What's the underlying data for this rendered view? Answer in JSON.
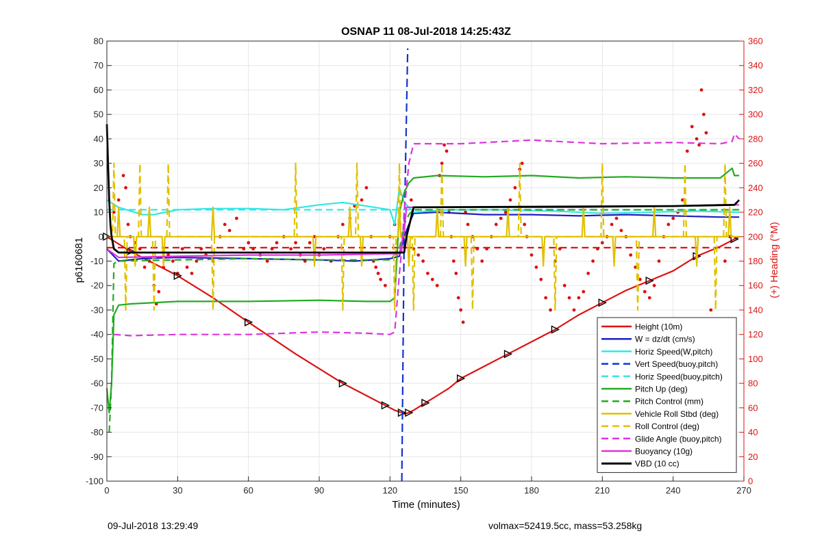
{
  "chart_data": {
    "type": "line",
    "title": "OSNAP 11 08-Jul-2018 14:25:43Z",
    "xlabel": "Time (minutes)",
    "ylabel": "p6160681",
    "y2label": "(+) Heading (°M)",
    "xlim": [
      0,
      270
    ],
    "ylim": [
      -100,
      80
    ],
    "y2lim": [
      0,
      360
    ],
    "xticks": [
      "0",
      "30",
      "60",
      "90",
      "120",
      "150",
      "180",
      "210",
      "240",
      "270"
    ],
    "yticks": [
      "80",
      "70",
      "60",
      "50",
      "40",
      "30",
      "20",
      "10",
      "0",
      "-10",
      "-20",
      "-30",
      "-40",
      "-50",
      "-60",
      "-70",
      "-80",
      "-90",
      "-100"
    ],
    "y2ticks": [
      "360",
      "340",
      "320",
      "300",
      "280",
      "260",
      "240",
      "220",
      "200",
      "180",
      "160",
      "140",
      "120",
      "100",
      "80",
      "60",
      "40",
      "20",
      "0"
    ],
    "grid": true,
    "legend_position": "bottom-right",
    "colors": {
      "red": "#dd1111",
      "blue": "#1f1fc0",
      "cyan": "#33e6e6",
      "dashblue": "#1133cc",
      "green": "#22aa22",
      "gold": "#e0c000",
      "magenta": "#dd33dd",
      "black": "#000000"
    },
    "series": [
      {
        "name": "Height (10m)",
        "style": "solid",
        "color": "red",
        "marker": "triangle",
        "x": [
          0,
          5,
          10,
          20,
          30,
          45,
          60,
          80,
          100,
          110,
          118,
          122,
          125,
          126,
          128,
          130,
          135,
          145,
          150,
          160,
          170,
          180,
          190,
          200,
          210,
          220,
          230,
          240,
          250,
          260,
          266,
          268
        ],
        "y": [
          0,
          -3,
          -6,
          -11,
          -16,
          -25,
          -35,
          -48,
          -60,
          -65,
          -69,
          -71,
          -72,
          -72.5,
          -72,
          -71,
          -68,
          -62,
          -58,
          -53,
          -48,
          -43,
          -38,
          -32,
          -27,
          -22,
          -18,
          -14,
          -8,
          -4,
          -1,
          0
        ]
      },
      {
        "name": "W = dz/dt (cm/s)",
        "style": "solid",
        "color": "blue",
        "x": [
          0,
          5,
          15,
          30,
          60,
          90,
          105,
          120,
          124,
          126,
          128,
          130,
          140,
          160,
          180,
          200,
          220,
          240,
          260,
          268
        ],
        "y": [
          -5,
          -10,
          -9,
          -8.5,
          -9,
          -9.5,
          -10,
          -9,
          -8,
          0,
          5,
          9.5,
          10,
          9,
          9,
          8.5,
          9,
          8.5,
          8,
          8
        ]
      },
      {
        "name": "Horiz Speed(W,pitch)",
        "style": "solid",
        "color": "cyan",
        "x": [
          0,
          5,
          15,
          20,
          30,
          45,
          60,
          75,
          90,
          100,
          110,
          120,
          122,
          124,
          126,
          130,
          145,
          165,
          190,
          210,
          230,
          250,
          268
        ],
        "y": [
          15,
          12,
          9,
          9,
          11,
          11.5,
          11.5,
          11,
          13,
          14,
          12.5,
          11,
          5,
          20,
          14,
          10,
          11,
          11,
          10.5,
          9.5,
          10,
          10.5,
          10
        ]
      },
      {
        "name": "Vert Speed(buoy,pitch)",
        "style": "dashed",
        "color": "dashblue",
        "x": [
          125,
          126,
          127.5
        ],
        "y": [
          -100,
          0,
          77
        ]
      },
      {
        "name": "Horiz Speed(buoy,pitch)",
        "style": "dashed",
        "color": "cyan",
        "x": [
          0,
          268
        ],
        "y": [
          11,
          11
        ]
      },
      {
        "name": "Pitch Up (deg)",
        "style": "solid",
        "color": "green",
        "x": [
          0,
          1,
          2,
          3,
          5,
          10,
          30,
          60,
          90,
          110,
          120,
          122,
          124,
          126,
          128,
          130,
          140,
          160,
          180,
          200,
          220,
          240,
          260,
          265,
          266,
          268
        ],
        "y": [
          -62,
          -72,
          -60,
          -32,
          -28,
          -27.5,
          -26.5,
          -26.5,
          -26,
          -26.5,
          -26.5,
          -25,
          10,
          18,
          22,
          24,
          25,
          24.5,
          25,
          24,
          24.5,
          24,
          24,
          28,
          25,
          25
        ]
      },
      {
        "name": "Pitch Control (mm)",
        "style": "dashed",
        "color": "green",
        "x": [
          1,
          2,
          3,
          5,
          30,
          60,
          90,
          120,
          124,
          126,
          128,
          130,
          150,
          180,
          210,
          240,
          268
        ],
        "y": [
          -80,
          -60,
          -11,
          -10,
          -9.5,
          -9,
          -9.5,
          -9.5,
          -5,
          5,
          9,
          11,
          11,
          11,
          11,
          11,
          11
        ]
      },
      {
        "name": "Vehicle Roll Stbd (deg)",
        "style": "solid",
        "color": "gold",
        "x": [
          0,
          268
        ],
        "y": [
          0,
          0
        ]
      },
      {
        "name": "Roll Control (deg)",
        "style": "dashed",
        "color": "gold",
        "x": [
          0,
          268
        ],
        "y": [
          0,
          0
        ]
      },
      {
        "name": "Glide Angle (buoy,pitch)",
        "style": "dashed",
        "color": "magenta",
        "x": [
          3,
          10,
          30,
          60,
          90,
          110,
          120,
          122,
          124,
          125,
          126,
          128,
          130,
          150,
          180,
          210,
          240,
          260,
          265,
          266,
          268
        ],
        "y": [
          -40,
          -40.5,
          -40,
          -40,
          -39,
          -39.5,
          -40,
          -39,
          -15,
          -5,
          10,
          30,
          38,
          38,
          39.5,
          38,
          38.5,
          38,
          39,
          42,
          40
        ]
      },
      {
        "name": "Buoyancy (10g)",
        "style": "solid",
        "color": "magenta",
        "x": [
          0,
          5,
          30,
          60,
          90,
          120,
          124,
          126,
          127,
          130,
          200,
          240,
          260,
          268
        ],
        "y": [
          -5,
          -8.5,
          -8,
          -7.5,
          -7.5,
          -7,
          -7,
          2,
          12,
          12,
          12,
          12.5,
          13,
          13
        ]
      },
      {
        "name": "VBD (10 cc)",
        "style": "solid",
        "color": "black",
        "x": [
          0,
          0.5,
          1,
          1.5,
          2,
          3,
          5,
          10,
          60,
          120,
          126,
          127,
          129,
          130,
          240,
          266,
          267,
          268
        ],
        "y": [
          46,
          30,
          15,
          5,
          0,
          -5,
          -6.5,
          -6.5,
          -6.5,
          -6.5,
          -6.5,
          0,
          8,
          12,
          12.5,
          13,
          14,
          15
        ]
      }
    ],
    "reference_lines": [
      {
        "color": "red",
        "style": "dashed",
        "x": [
          0,
          127
        ],
        "y": [
          -4.5,
          -4.5
        ]
      },
      {
        "color": "red",
        "style": "dashed",
        "x": [
          127,
          268
        ],
        "y": [
          -4.5,
          -4.5
        ]
      }
    ],
    "heading_points_axis": "right",
    "heading_points": {
      "color": "red",
      "x": [
        3,
        5,
        7,
        8,
        9,
        10,
        12,
        14,
        16,
        18,
        20,
        21,
        22,
        24,
        26,
        28,
        30,
        32,
        34,
        36,
        38,
        40,
        42,
        45,
        48,
        50,
        52,
        55,
        58,
        60,
        62,
        65,
        68,
        70,
        72,
        75,
        78,
        80,
        82,
        84,
        86,
        88,
        90,
        92,
        95,
        98,
        100,
        103,
        105,
        108,
        110,
        112,
        113,
        114,
        115,
        116,
        118,
        120,
        122,
        129,
        130,
        132,
        134,
        136,
        138,
        140,
        141,
        142,
        143,
        144,
        145,
        146,
        147,
        148,
        149,
        150,
        151,
        152,
        153,
        155,
        157,
        159,
        161,
        163,
        165,
        167,
        169,
        171,
        173,
        175,
        176,
        177,
        178,
        180,
        182,
        184,
        186,
        188,
        190,
        192,
        194,
        196,
        198,
        200,
        202,
        204,
        206,
        208,
        210,
        212,
        214,
        216,
        218,
        220,
        222,
        224,
        226,
        228,
        230,
        232,
        234,
        236,
        238,
        240,
        242,
        244,
        246,
        248,
        250,
        251,
        252,
        253,
        254,
        256,
        258,
        260,
        262,
        264,
        266
      ],
      "y": [
        220,
        230,
        250,
        240,
        210,
        200,
        195,
        190,
        175,
        180,
        160,
        145,
        155,
        175,
        185,
        180,
        170,
        190,
        175,
        170,
        180,
        190,
        185,
        180,
        200,
        210,
        205,
        215,
        190,
        195,
        190,
        185,
        180,
        190,
        195,
        200,
        190,
        195,
        185,
        180,
        195,
        200,
        185,
        190,
        180,
        200,
        210,
        215,
        225,
        230,
        240,
        200,
        180,
        175,
        170,
        165,
        160,
        200,
        210,
        230,
        190,
        185,
        180,
        170,
        165,
        160,
        250,
        260,
        275,
        270,
        220,
        200,
        180,
        170,
        150,
        140,
        130,
        220,
        210,
        200,
        190,
        180,
        190,
        200,
        210,
        215,
        220,
        230,
        240,
        255,
        260,
        210,
        200,
        185,
        175,
        165,
        150,
        140,
        180,
        190,
        160,
        150,
        140,
        150,
        155,
        170,
        180,
        190,
        195,
        200,
        210,
        215,
        205,
        200,
        185,
        175,
        165,
        155,
        150,
        160,
        180,
        200,
        210,
        215,
        220,
        230,
        270,
        290,
        280,
        275,
        320,
        300,
        285,
        140,
        130,
        110,
        180,
        200,
        120
      ]
    }
  },
  "footer": {
    "timestamp": "09-Jul-2018 13:29:49",
    "info": "volmax=52419.5cc, mass=53.258kg"
  }
}
